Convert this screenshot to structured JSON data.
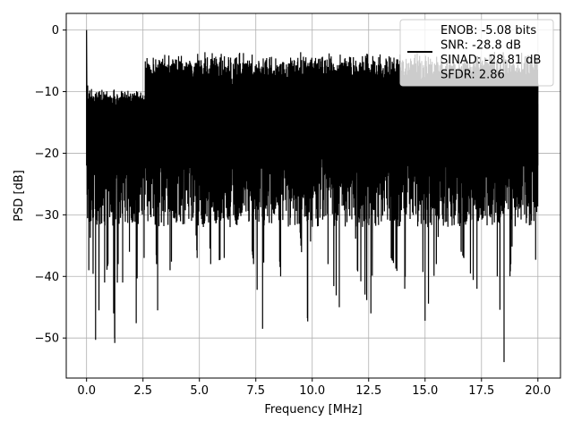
{
  "chart_data": {
    "type": "line",
    "title": "",
    "xlabel": "Frequency [MHz]",
    "ylabel": "PSD [dB]",
    "xlim": [
      -0.9,
      21.0
    ],
    "ylim": [
      -56.5,
      2.7
    ],
    "xticks": [
      0.0,
      2.5,
      5.0,
      7.5,
      10.0,
      12.5,
      15.0,
      17.5,
      20.0
    ],
    "xtick_labels": [
      "0.0",
      "2.5",
      "5.0",
      "7.5",
      "10.0",
      "12.5",
      "15.0",
      "17.5",
      "20.0"
    ],
    "yticks": [
      0,
      -10,
      -20,
      -30,
      -40,
      -50
    ],
    "ytick_labels": [
      "0",
      "−10",
      "−20",
      "−30",
      "−40",
      "−50"
    ],
    "grid": true,
    "legend_position": "top-right",
    "series": [
      {
        "color": "#000000",
        "description_of_shape": "dense noise-like spectrum spanning 0 to 20 MHz; peak 0 dB at 0 MHz, upper envelope about -12 dB near DC rising to about -6 dB mid-band, floor between about -25 and -54 dB",
        "points": [
          [
            0.0,
            0.0
          ],
          [
            0.05,
            -9.0
          ],
          [
            0.1,
            -39.0
          ],
          [
            0.2,
            -31.0
          ],
          [
            0.4,
            -50.3
          ],
          [
            0.45,
            -12.0
          ],
          [
            0.55,
            -45.5
          ],
          [
            0.7,
            -11.5
          ],
          [
            0.8,
            -41.0
          ],
          [
            0.95,
            -38.0
          ],
          [
            1.1,
            -12.0
          ],
          [
            1.2,
            -46.0
          ],
          [
            1.25,
            -50.8
          ],
          [
            1.4,
            -38.0
          ],
          [
            1.6,
            -41.0
          ],
          [
            1.75,
            -11.0
          ],
          [
            1.9,
            -36.0
          ],
          [
            2.2,
            -47.6
          ],
          [
            2.4,
            -12.0
          ],
          [
            2.55,
            -37.0
          ],
          [
            2.8,
            -6.0
          ],
          [
            3.1,
            -38.0
          ],
          [
            3.15,
            -45.5
          ],
          [
            3.5,
            -6.0
          ],
          [
            3.7,
            -39.0
          ],
          [
            4.1,
            -30.0
          ],
          [
            4.5,
            -5.5
          ],
          [
            4.9,
            -37.0
          ],
          [
            5.1,
            -6.0
          ],
          [
            5.5,
            -38.0
          ],
          [
            6.1,
            -37.0
          ],
          [
            6.5,
            -5.5
          ],
          [
            7.4,
            -38.0
          ],
          [
            7.8,
            -48.5
          ],
          [
            8.0,
            -6.0
          ],
          [
            8.6,
            -40.0
          ],
          [
            9.0,
            -5.5
          ],
          [
            9.5,
            -35.0
          ],
          [
            9.8,
            -47.3
          ],
          [
            10.2,
            -6.0
          ],
          [
            10.7,
            -38.0
          ],
          [
            11.2,
            -45.0
          ],
          [
            11.5,
            -5.5
          ],
          [
            12.0,
            -39.0
          ],
          [
            12.6,
            -46.0
          ],
          [
            13.0,
            -6.0
          ],
          [
            13.5,
            -37.0
          ],
          [
            14.1,
            -42.0
          ],
          [
            14.5,
            -5.5
          ],
          [
            15.0,
            -47.2
          ],
          [
            15.5,
            -38.0
          ],
          [
            16.1,
            -5.5
          ],
          [
            16.6,
            -36.0
          ],
          [
            17.3,
            -42.0
          ],
          [
            17.7,
            -6.0
          ],
          [
            18.2,
            -40.0
          ],
          [
            18.5,
            -53.9
          ],
          [
            18.8,
            -38.0
          ],
          [
            19.4,
            -7.0
          ],
          [
            19.9,
            -37.3
          ],
          [
            20.0,
            -12.0
          ]
        ]
      }
    ],
    "legend": {
      "entries": [
        "ENOB: -5.08 bits",
        "SNR: -28.8 dB",
        "SINAD: -28.81 dB",
        "SFDR: 2.86"
      ]
    }
  }
}
